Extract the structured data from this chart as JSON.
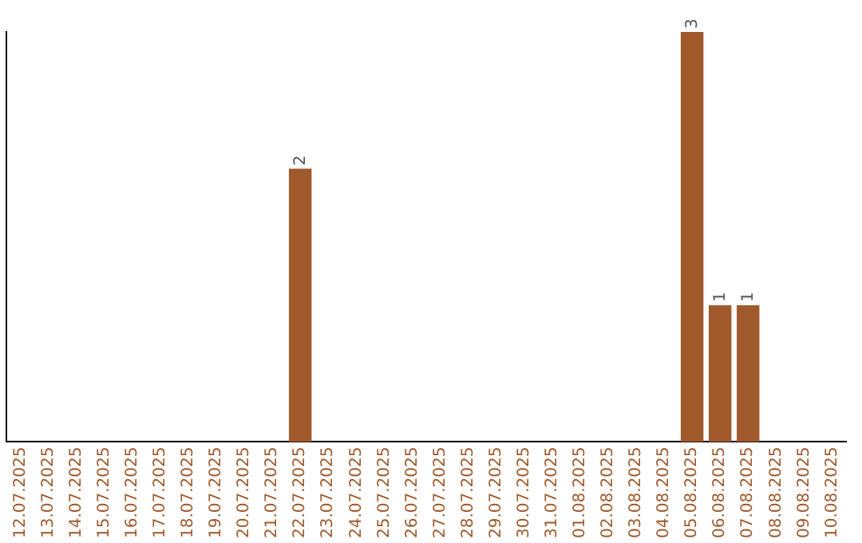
{
  "chart_data": {
    "type": "bar",
    "categories": [
      "12.07.2025",
      "13.07.2025",
      "14.07.2025",
      "15.07.2025",
      "16.07.2025",
      "17.07.2025",
      "18.07.2025",
      "19.07.2025",
      "20.07.2025",
      "21.07.2025",
      "22.07.2025",
      "23.07.2025",
      "24.07.2025",
      "25.07.2025",
      "26.07.2025",
      "27.07.2025",
      "28.07.2025",
      "29.07.2025",
      "30.07.2025",
      "31.07.2025",
      "01.08.2025",
      "02.08.2025",
      "03.08.2025",
      "04.08.2025",
      "05.08.2025",
      "06.08.2025",
      "07.08.2025",
      "08.08.2025",
      "09.08.2025",
      "10.08.2025"
    ],
    "values": [
      0,
      0,
      0,
      0,
      0,
      0,
      0,
      0,
      0,
      0,
      2,
      0,
      0,
      0,
      0,
      0,
      0,
      0,
      0,
      0,
      0,
      0,
      0,
      0,
      3,
      1,
      1,
      0,
      0,
      0
    ],
    "value_labels": [
      null,
      null,
      null,
      null,
      null,
      null,
      null,
      null,
      null,
      null,
      "2",
      null,
      null,
      null,
      null,
      null,
      null,
      null,
      null,
      null,
      null,
      null,
      null,
      null,
      "3",
      "1",
      "1",
      null,
      null,
      null
    ],
    "color": "#a0592b",
    "grid": false,
    "legend": false
  }
}
